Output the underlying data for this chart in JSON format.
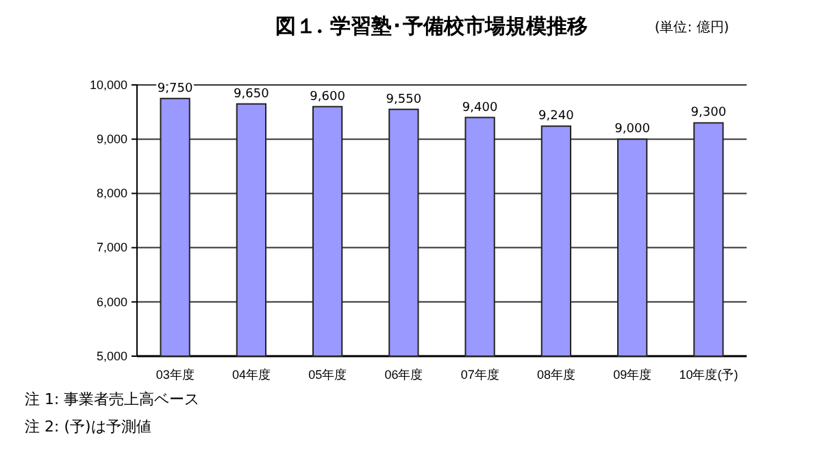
{
  "chart_data": {
    "type": "bar",
    "title": "図１. 学習塾･予備校市場規模推移",
    "subtitle": "(単位: 億円)",
    "categories": [
      "03年度",
      "04年度",
      "05年度",
      "06年度",
      "07年度",
      "08年度",
      "09年度",
      "10年度(予)"
    ],
    "values": [
      9750,
      9650,
      9600,
      9550,
      9400,
      9240,
      9000,
      9300
    ],
    "color": "#9999ff",
    "value_labels": [
      "9,750",
      "9,650",
      "9,600",
      "9,550",
      "9,400",
      "9,240",
      "9,000",
      "9,300"
    ],
    "ylim": [
      5000,
      10000
    ],
    "yticks": [
      {
        "value": 5000,
        "label": "5,000"
      },
      {
        "value": 6000,
        "label": "6,000"
      },
      {
        "value": 7000,
        "label": "7,000"
      },
      {
        "value": 8000,
        "label": "8,000"
      },
      {
        "value": 9000,
        "label": "9,000"
      },
      {
        "value": 10000,
        "label": "10,000"
      }
    ],
    "grid": "y",
    "annotations": [
      "注 1:  事業者売上高ベース",
      "注 2:  (予)は予測値"
    ]
  }
}
